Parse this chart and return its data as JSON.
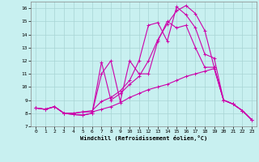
{
  "xlabel": "Windchill (Refroidissement éolien,°C)",
  "xlim": [
    -0.5,
    23.5
  ],
  "ylim": [
    7,
    16.5
  ],
  "yticks": [
    7,
    8,
    9,
    10,
    11,
    12,
    13,
    14,
    15,
    16
  ],
  "xticks": [
    0,
    1,
    2,
    3,
    4,
    5,
    6,
    7,
    8,
    9,
    10,
    11,
    12,
    13,
    14,
    15,
    16,
    17,
    18,
    19,
    20,
    21,
    22,
    23
  ],
  "bg_color": "#c8f0f0",
  "line_color": "#cc00aa",
  "series": [
    [
      8.4,
      8.3,
      8.5,
      8.0,
      8.0,
      8.1,
      8.1,
      8.3,
      8.5,
      8.8,
      9.2,
      9.5,
      9.8,
      10.0,
      10.2,
      10.5,
      10.8,
      11.0,
      11.2,
      11.4,
      9.0,
      8.7,
      8.2,
      7.5
    ],
    [
      8.4,
      8.3,
      8.5,
      8.0,
      8.0,
      8.1,
      8.2,
      8.9,
      9.2,
      9.7,
      10.5,
      12.0,
      14.7,
      14.9,
      13.5,
      16.1,
      15.5,
      14.5,
      12.5,
      12.2,
      9.0,
      8.7,
      8.2,
      7.5
    ],
    [
      8.4,
      8.3,
      8.5,
      8.0,
      7.9,
      7.85,
      8.0,
      11.0,
      12.0,
      8.9,
      12.0,
      11.0,
      11.0,
      13.5,
      15.0,
      14.5,
      14.7,
      13.0,
      11.5,
      11.5,
      9.0,
      8.7,
      8.2,
      7.5
    ],
    [
      8.4,
      8.3,
      8.5,
      8.0,
      7.9,
      7.85,
      8.0,
      11.9,
      9.0,
      9.5,
      10.2,
      10.8,
      12.0,
      13.6,
      14.8,
      15.8,
      16.2,
      15.6,
      14.3,
      11.5,
      9.0,
      8.7,
      8.2,
      7.5
    ]
  ]
}
